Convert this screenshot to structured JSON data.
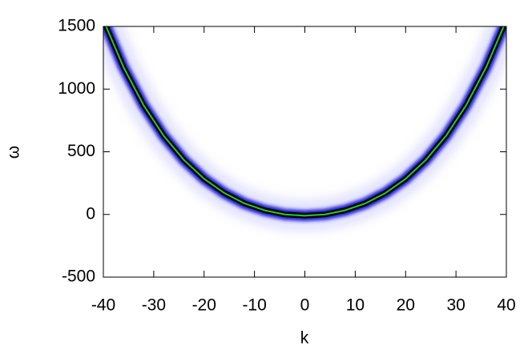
{
  "chart_data": {
    "type": "line",
    "xlabel": "k",
    "ylabel": "ω",
    "x": [
      -40,
      -36,
      -32,
      -28,
      -24,
      -20,
      -16,
      -12,
      -8,
      -4,
      0,
      4,
      8,
      12,
      16,
      20,
      24,
      28,
      32,
      36,
      40
    ],
    "series": [
      {
        "color": "#22cc22",
        "values": [
          1550,
          1175,
          870,
          626,
          434,
          284,
          171,
          88,
          33,
          0,
          -10,
          0,
          33,
          88,
          171,
          284,
          434,
          626,
          870,
          1175,
          1550
        ]
      }
    ],
    "xlim": [
      -40,
      40
    ],
    "xticks": [
      -40,
      -30,
      -20,
      -10,
      0,
      10,
      20,
      30,
      40
    ],
    "ylim": [
      -500,
      1500
    ],
    "yticks": [
      -500,
      0,
      500,
      1000,
      1500
    ]
  }
}
